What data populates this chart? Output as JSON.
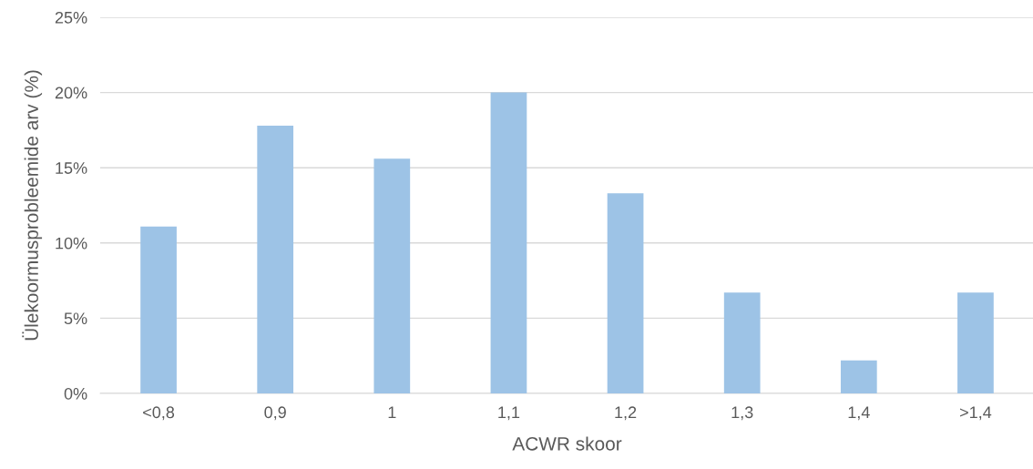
{
  "chart_data": {
    "type": "bar",
    "xlabel": "ACWR skoor",
    "ylabel": "Ülekoormusprobleemide arv (%)",
    "categories": [
      "<0,8",
      "0,9",
      "1",
      "1,1",
      "1,2",
      "1,3",
      "1,4",
      ">1,4"
    ],
    "values": [
      11.1,
      17.8,
      15.6,
      20.0,
      13.3,
      6.7,
      2.2,
      6.7
    ],
    "color": "#9dc3e6",
    "ylim": [
      0,
      25
    ],
    "yticks": [
      {
        "value": 0,
        "label": "0%"
      },
      {
        "value": 5,
        "label": "5%"
      },
      {
        "value": 10,
        "label": "10%"
      },
      {
        "value": 15,
        "label": "15%"
      },
      {
        "value": 20,
        "label": "20%"
      },
      {
        "value": 25,
        "label": "25%"
      }
    ],
    "grid": "y",
    "legend": false
  }
}
